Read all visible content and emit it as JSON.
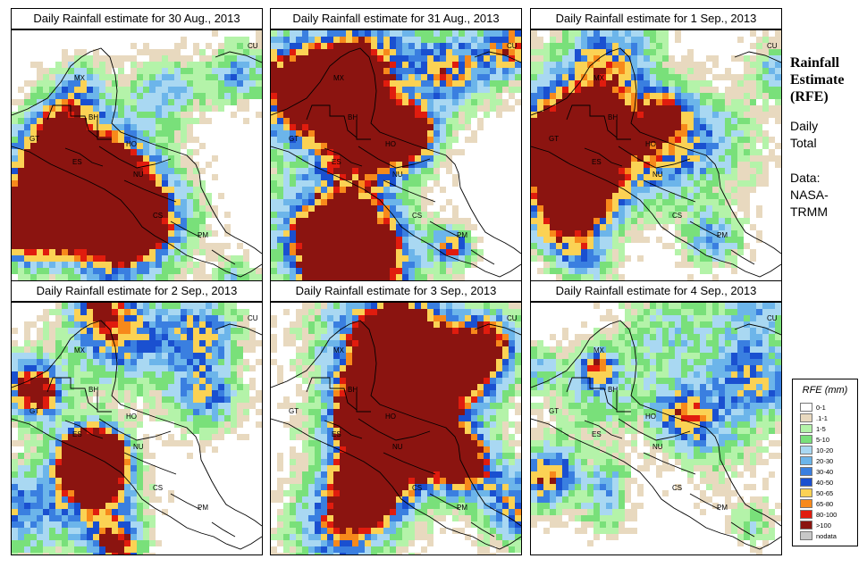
{
  "side": {
    "title_line1": "Rainfall",
    "title_line2": "Estimate",
    "title_line3": "(RFE)",
    "sub_line1": "Daily",
    "sub_line2": "Total",
    "data_line1": "Data:",
    "data_line2": "NASA-",
    "data_line3": "TRMM"
  },
  "legend": {
    "title": "RFE (mm)",
    "items": [
      {
        "label": "0-1",
        "color": "#ffffff"
      },
      {
        "label": ".1-1",
        "color": "#e8d9bf"
      },
      {
        "label": "1-5",
        "color": "#b4f3a9"
      },
      {
        "label": "5-10",
        "color": "#79e07a"
      },
      {
        "label": "10-20",
        "color": "#a9d8f2"
      },
      {
        "label": "20-30",
        "color": "#6cb5ea"
      },
      {
        "label": "30-40",
        "color": "#3a7fe0"
      },
      {
        "label": "40-50",
        "color": "#1a50d0"
      },
      {
        "label": "50-65",
        "color": "#fbd254"
      },
      {
        "label": "65-80",
        "color": "#f7891b"
      },
      {
        "label": "80-100",
        "color": "#e01c0e"
      },
      {
        "label": ">100",
        "color": "#8b1410"
      },
      {
        "label": "nodata",
        "color": "#c8c8c8"
      }
    ]
  },
  "country_labels": [
    "MX",
    "BH",
    "GT",
    "HO",
    "ES",
    "NU",
    "CS",
    "PM",
    "CU"
  ],
  "panels": [
    {
      "title": "Daily Rainfall estimate for  30 Aug., 2013",
      "seed": 3,
      "intensity": 0.55
    },
    {
      "title": "Daily Rainfall estimate for  31 Aug., 2013",
      "seed": 11,
      "intensity": 0.85
    },
    {
      "title": "Daily Rainfall estimate for  1 Sep., 2013",
      "seed": 23,
      "intensity": 0.5
    },
    {
      "title": "Daily Rainfall estimate for  2 Sep., 2013",
      "seed": 37,
      "intensity": 0.6
    },
    {
      "title": "Daily Rainfall estimate for  3 Sep., 2013",
      "seed": 51,
      "intensity": 0.9
    },
    {
      "title": "Daily Rainfall estimate for  4 Sep., 2013",
      "seed": 67,
      "intensity": 0.45
    }
  ]
}
